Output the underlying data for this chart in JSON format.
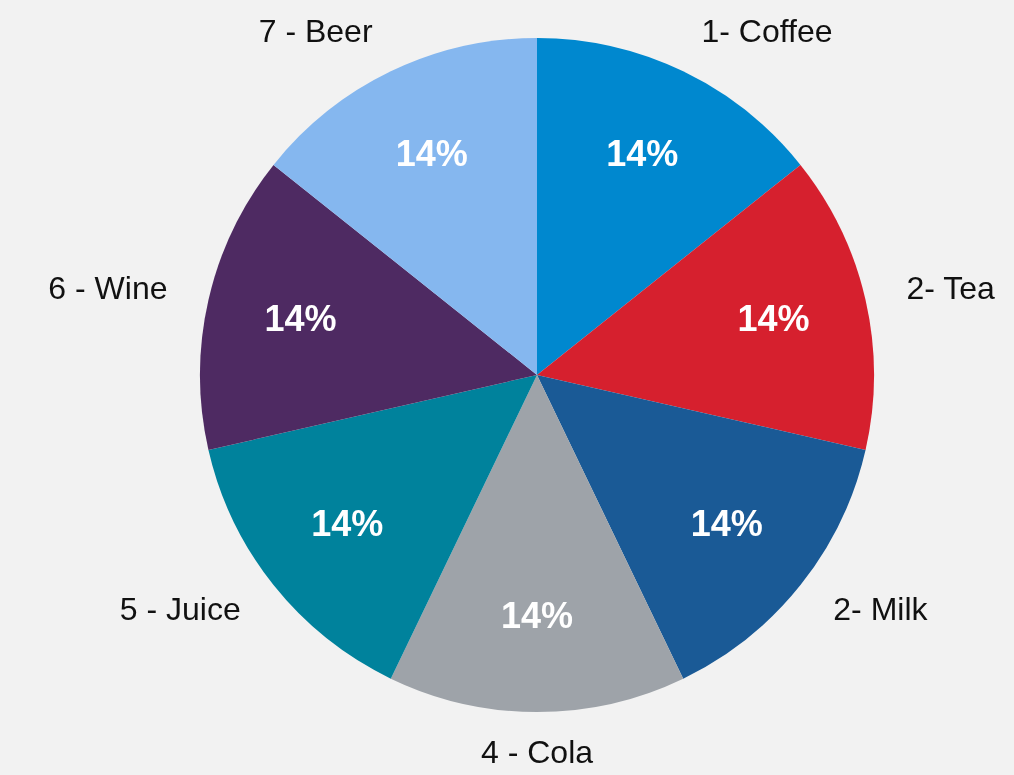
{
  "chart_data": {
    "type": "pie",
    "categories": [
      "1- Coffee",
      "2- Tea",
      "2- Milk",
      "4 - Cola",
      "5 - Juice",
      "6 - Wine",
      "7 - Beer"
    ],
    "values": [
      14,
      14,
      14,
      14,
      14,
      14,
      14
    ],
    "value_labels": [
      "14%",
      "14%",
      "14%",
      "14%",
      "14%",
      "14%",
      "14%"
    ],
    "colors": [
      "#0088cf",
      "#d6202e",
      "#1a5a96",
      "#9ea3a9",
      "#00829c",
      "#4e2a62",
      "#85b7ef"
    ],
    "legend": false
  }
}
